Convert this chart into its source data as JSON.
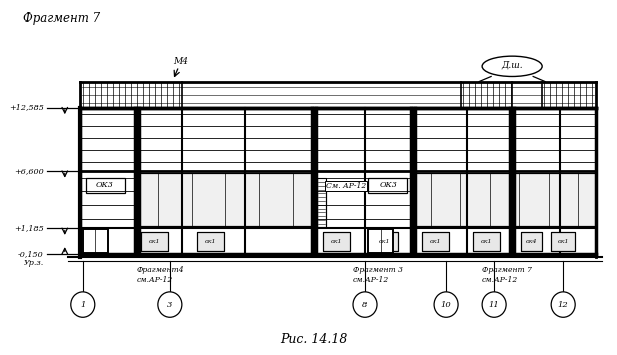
{
  "title": "Фрагмент 7",
  "caption": "Рис. 14.18",
  "bg_color": "#ffffff",
  "line_color": "#000000",
  "fig_width": 6.17,
  "fig_height": 3.55,
  "dpi": 100,
  "elev_labels": [
    "+12,585",
    "+6,600",
    "+1,185",
    "-0,150"
  ],
  "urz_label": "Ур.з.",
  "m4_label": "М4",
  "dsh_label": "Д.ш.",
  "sm_ar12": "См. АР-12",
  "ok3_label": "ОК3",
  "frag4": "Фрагмент4",
  "frag3": "Фрагмент 3",
  "frag7": "Фрагмент 7",
  "sm_ar": "см.АР-12",
  "ok1": "ок1",
  "ok4": "ок4"
}
